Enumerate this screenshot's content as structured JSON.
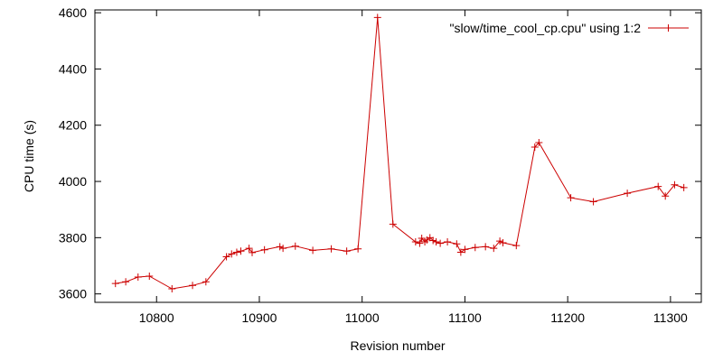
{
  "chart_data": {
    "type": "line",
    "xlabel": "Revision number",
    "ylabel": "CPU time (s)",
    "xlim": [
      10740,
      11330
    ],
    "ylim": [
      3570,
      4610
    ],
    "x_ticks": [
      10800,
      10900,
      11000,
      11100,
      11200,
      11300
    ],
    "y_ticks": [
      3600,
      3800,
      4000,
      4200,
      4400,
      4600
    ],
    "grid": false,
    "legend_position": "top-right",
    "series": [
      {
        "name": "\"slow/time_cool_cp.cpu\" using 1:2",
        "color": "#cc0000",
        "marker": "plus",
        "x": [
          10760,
          10770,
          10782,
          10793,
          10815,
          10835,
          10848,
          10868,
          10873,
          10878,
          10882,
          10890,
          10893,
          10905,
          10920,
          10923,
          10935,
          10952,
          10970,
          10985,
          10996,
          11015,
          11030,
          11052,
          11056,
          11058,
          11061,
          11063,
          11066,
          11069,
          11072,
          11076,
          11083,
          11092,
          11096,
          11100,
          11110,
          11120,
          11128,
          11134,
          11137,
          11150,
          11168,
          11172,
          11203,
          11225,
          11258,
          11288,
          11295,
          11304,
          11313
        ],
        "y": [
          3637,
          3643,
          3660,
          3663,
          3618,
          3630,
          3643,
          3732,
          3742,
          3748,
          3752,
          3762,
          3747,
          3757,
          3768,
          3762,
          3770,
          3755,
          3760,
          3752,
          3760,
          4583,
          3848,
          3785,
          3780,
          3798,
          3785,
          3792,
          3800,
          3790,
          3785,
          3780,
          3785,
          3778,
          3748,
          3758,
          3765,
          3768,
          3762,
          3788,
          3782,
          3772,
          4122,
          4138,
          3942,
          3928,
          3958,
          3982,
          3948,
          3988,
          3978
        ]
      }
    ]
  }
}
